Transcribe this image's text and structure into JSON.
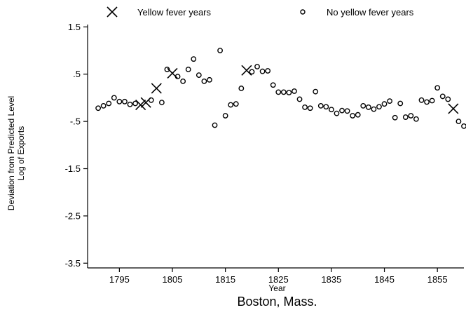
{
  "chart_data": {
    "type": "scatter",
    "title": "Boston, Mass.",
    "xlabel": "Year",
    "ylabel_lines": [
      "Deviation from Predicted Level",
      "Log of Exports"
    ],
    "xlim": [
      1789,
      1860
    ],
    "ylim": [
      -3.6,
      1.55
    ],
    "xticks": [
      1795,
      1805,
      1815,
      1825,
      1835,
      1845,
      1855
    ],
    "yticks": [
      1.5,
      0.5,
      -0.5,
      -1.5,
      -2.5,
      -3.5
    ],
    "ytick_labels": [
      "1.5",
      ".5",
      "-.5",
      "-1.5",
      "-2.5",
      "-3.5"
    ],
    "legend": [
      {
        "label": "Yellow fever years",
        "marker": "x"
      },
      {
        "label": "No yellow fever years",
        "marker": "o"
      }
    ],
    "series": [
      {
        "name": "Yellow fever years",
        "marker": "x",
        "points": [
          [
            1799,
            -0.15
          ],
          [
            1800,
            -0.1
          ],
          [
            1802,
            0.2
          ],
          [
            1805,
            0.52
          ],
          [
            1819,
            0.58
          ],
          [
            1858,
            -0.23
          ]
        ]
      },
      {
        "name": "No yellow fever years",
        "marker": "o",
        "points": [
          [
            1791,
            -0.22
          ],
          [
            1792,
            -0.17
          ],
          [
            1793,
            -0.12
          ],
          [
            1794,
            0.0
          ],
          [
            1795,
            -0.08
          ],
          [
            1796,
            -0.08
          ],
          [
            1797,
            -0.14
          ],
          [
            1798,
            -0.12
          ],
          [
            1801,
            -0.05
          ],
          [
            1803,
            -0.1
          ],
          [
            1804,
            0.6
          ],
          [
            1806,
            0.45
          ],
          [
            1807,
            0.35
          ],
          [
            1808,
            0.6
          ],
          [
            1809,
            0.82
          ],
          [
            1810,
            0.48
          ],
          [
            1811,
            0.35
          ],
          [
            1812,
            0.38
          ],
          [
            1813,
            -0.58
          ],
          [
            1814,
            1.0
          ],
          [
            1815,
            -0.38
          ],
          [
            1816,
            -0.15
          ],
          [
            1817,
            -0.13
          ],
          [
            1818,
            0.2
          ],
          [
            1820,
            0.55
          ],
          [
            1821,
            0.66
          ],
          [
            1822,
            0.56
          ],
          [
            1823,
            0.57
          ],
          [
            1824,
            0.27
          ],
          [
            1825,
            0.12
          ],
          [
            1826,
            0.12
          ],
          [
            1827,
            0.11
          ],
          [
            1828,
            0.14
          ],
          [
            1829,
            -0.03
          ],
          [
            1830,
            -0.2
          ],
          [
            1831,
            -0.22
          ],
          [
            1832,
            0.13
          ],
          [
            1833,
            -0.17
          ],
          [
            1834,
            -0.19
          ],
          [
            1835,
            -0.25
          ],
          [
            1836,
            -0.33
          ],
          [
            1837,
            -0.27
          ],
          [
            1838,
            -0.28
          ],
          [
            1839,
            -0.38
          ],
          [
            1840,
            -0.36
          ],
          [
            1841,
            -0.17
          ],
          [
            1842,
            -0.2
          ],
          [
            1843,
            -0.24
          ],
          [
            1844,
            -0.19
          ],
          [
            1845,
            -0.13
          ],
          [
            1846,
            -0.07
          ],
          [
            1847,
            -0.42
          ],
          [
            1848,
            -0.12
          ],
          [
            1849,
            -0.41
          ],
          [
            1850,
            -0.38
          ],
          [
            1851,
            -0.45
          ],
          [
            1852,
            -0.05
          ],
          [
            1853,
            -0.09
          ],
          [
            1854,
            -0.06
          ],
          [
            1855,
            0.21
          ],
          [
            1856,
            0.03
          ],
          [
            1857,
            -0.03
          ],
          [
            1859,
            -0.5
          ],
          [
            1860,
            -0.6
          ]
        ]
      }
    ]
  }
}
